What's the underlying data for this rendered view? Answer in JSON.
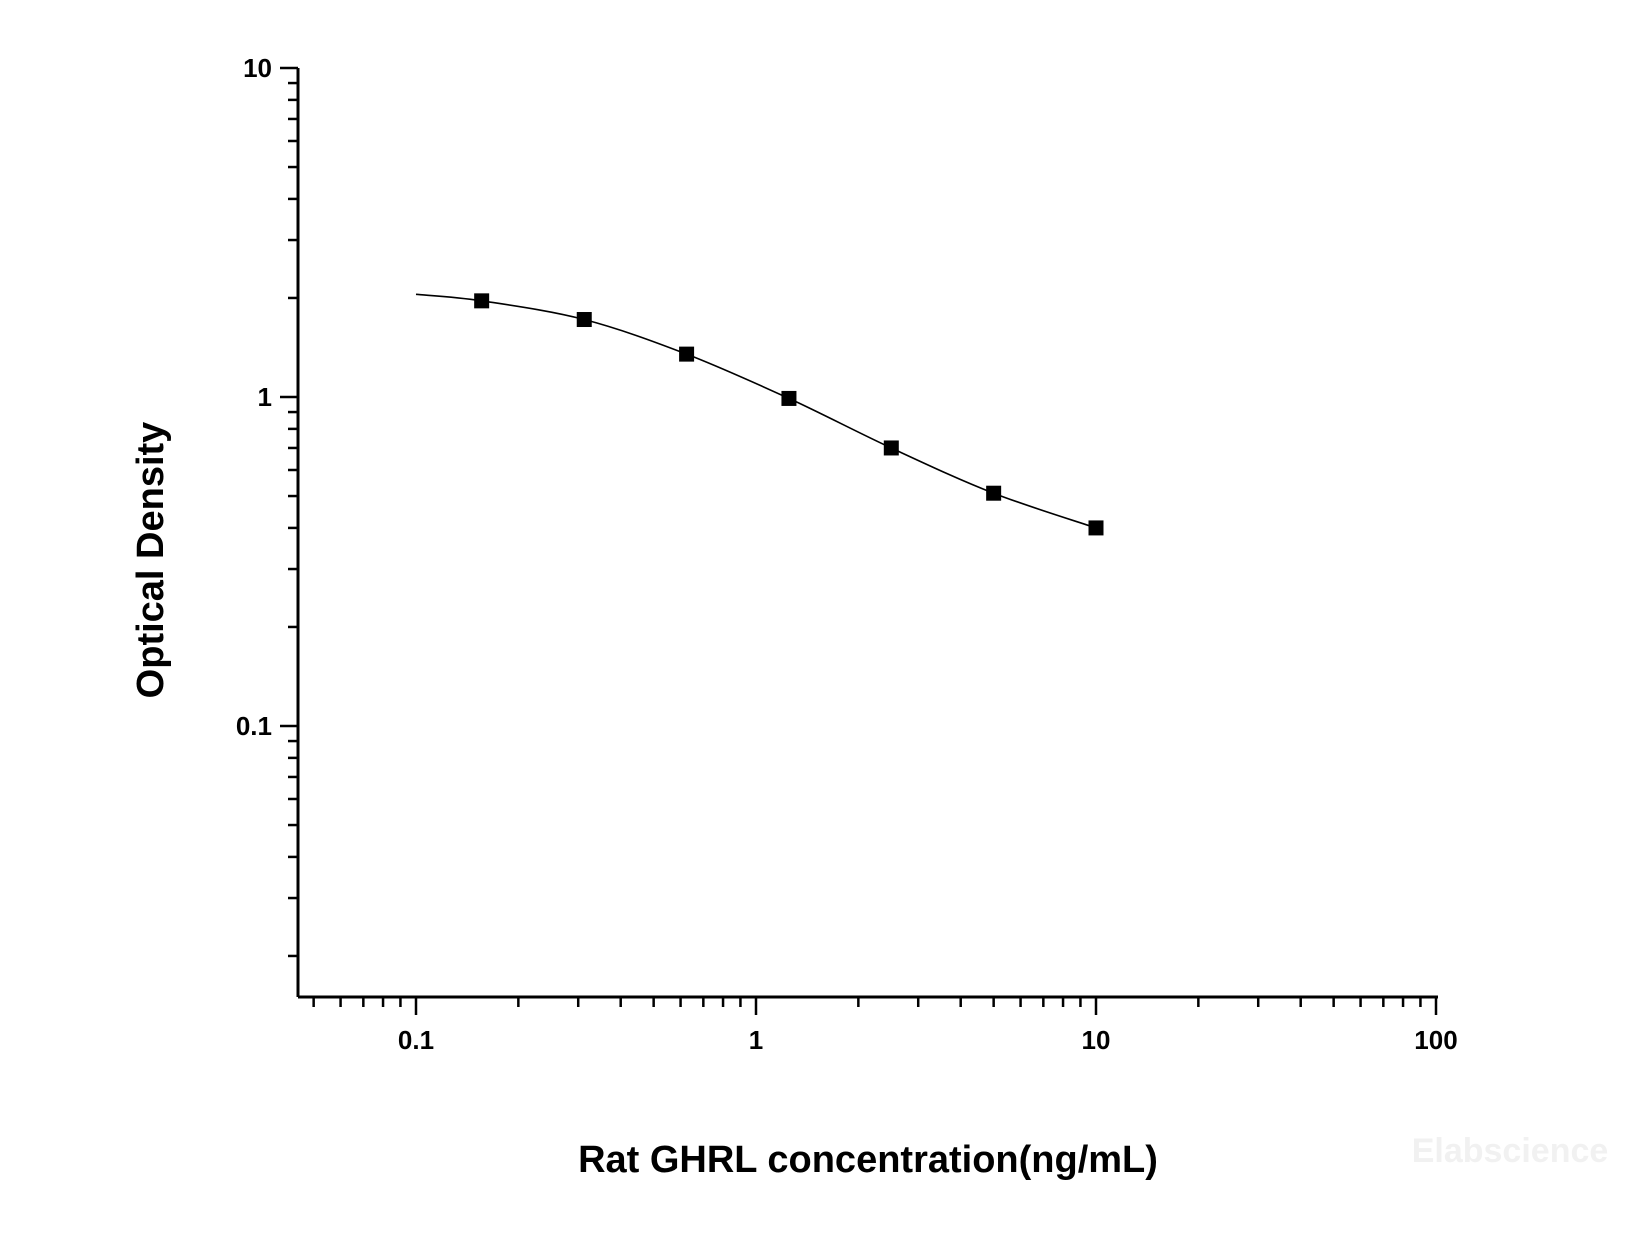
{
  "chart_data": {
    "type": "scatter",
    "xlabel": "Rat GHRL concentration(ng/mL)",
    "ylabel": "Optical Density",
    "xscale": "log",
    "yscale": "log",
    "xlim": [
      0.05,
      100
    ],
    "ylim": [
      0.016,
      10
    ],
    "x_ticks": [
      0.1,
      1,
      10,
      100
    ],
    "x_tick_labels": [
      "0.1",
      "1",
      "10",
      "100"
    ],
    "y_ticks": [
      0.1,
      1,
      10
    ],
    "y_tick_labels": [
      "0.1",
      "1",
      "10"
    ],
    "grid": false,
    "series": [
      {
        "x": [
          0.156,
          0.3125,
          0.625,
          1.25,
          2.5,
          5,
          10
        ],
        "y": [
          1.96,
          1.72,
          1.35,
          0.99,
          0.7,
          0.51,
          0.4
        ],
        "marker": "square",
        "color": "#000000"
      }
    ],
    "fit_curve": {
      "type": "4PL",
      "x_range": [
        0.1,
        10
      ],
      "color": "#000000"
    }
  },
  "watermark": "Elabscience"
}
